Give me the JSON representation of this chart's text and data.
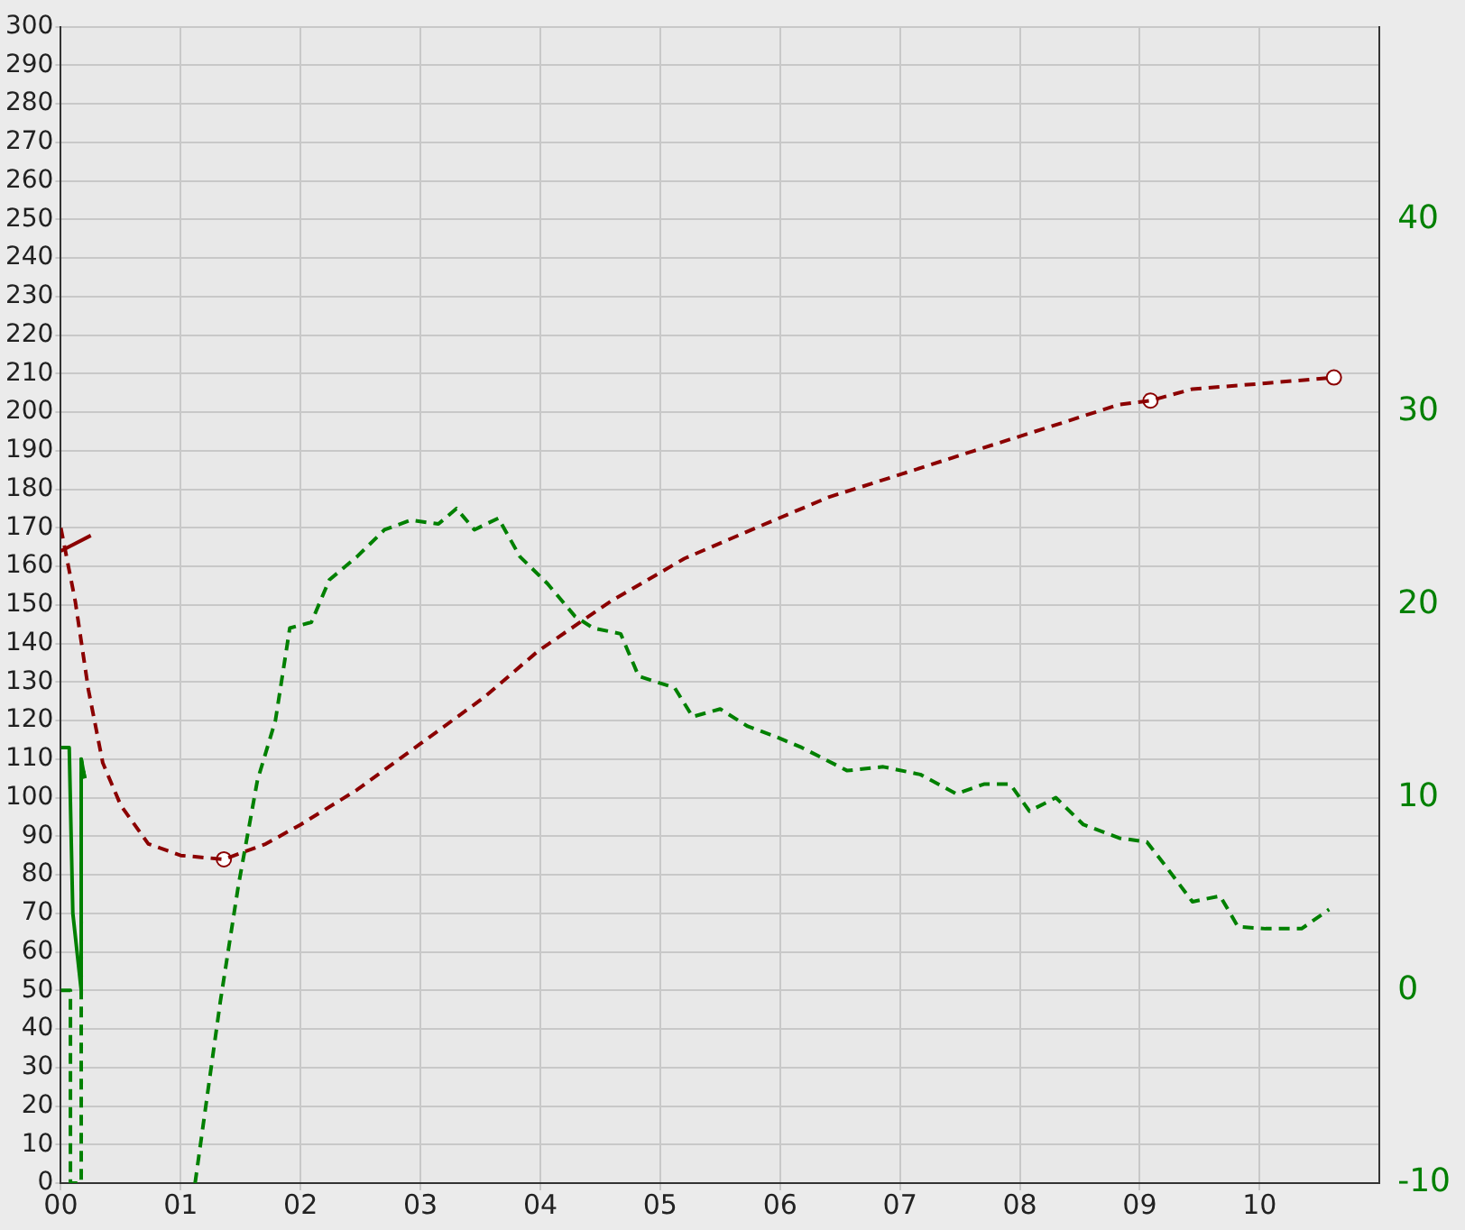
{
  "chart_data": {
    "type": "line",
    "xlim": [
      0,
      11
    ],
    "ylim": [
      0,
      300
    ],
    "y2lim": [
      -10,
      50
    ],
    "xticks": [
      {
        "value": 0,
        "label": "00"
      },
      {
        "value": 1,
        "label": "01"
      },
      {
        "value": 2,
        "label": "02"
      },
      {
        "value": 3,
        "label": "03"
      },
      {
        "value": 4,
        "label": "04"
      },
      {
        "value": 5,
        "label": "05"
      },
      {
        "value": 6,
        "label": "06"
      },
      {
        "value": 7,
        "label": "07"
      },
      {
        "value": 8,
        "label": "08"
      },
      {
        "value": 9,
        "label": "09"
      },
      {
        "value": 10,
        "label": "10"
      }
    ],
    "yticks": [
      0,
      10,
      20,
      30,
      40,
      50,
      60,
      70,
      80,
      90,
      100,
      110,
      120,
      130,
      140,
      150,
      160,
      170,
      180,
      190,
      200,
      210,
      220,
      230,
      240,
      250,
      260,
      270,
      280,
      290,
      300
    ],
    "y2ticks": [
      -10,
      0,
      10,
      20,
      30,
      40
    ],
    "grid": true,
    "legend": false,
    "series": [
      {
        "color": "#8b0000",
        "line_style": "dashed",
        "marker": "none",
        "x": [
          0,
          0.12,
          0.23,
          0.35,
          0.5,
          0.73,
          1.0,
          1.36,
          1.71,
          2,
          2.47,
          3,
          3.53,
          3.98,
          4.59,
          5.2,
          5.8,
          6.41,
          7.02,
          7.62,
          8.23,
          8.83,
          9.09,
          9.44,
          10.05,
          10.62
        ],
        "values": [
          170,
          151,
          128,
          109,
          98,
          88,
          85,
          84,
          88,
          93,
          102,
          114,
          126,
          138,
          151,
          162,
          170,
          178,
          184,
          190,
          196,
          202,
          203,
          206,
          207.5,
          209
        ]
      },
      {
        "color": "#8b0000",
        "line_style": "solid",
        "marker": "none",
        "x": [
          0,
          0.25
        ],
        "values": [
          164,
          168
        ]
      },
      {
        "type": "scatter",
        "color": "#8b0000",
        "marker": "circle",
        "x": [
          1.36,
          9.09,
          10.62
        ],
        "values": [
          84,
          203,
          209
        ]
      },
      {
        "axis": "y2",
        "color": "#008000",
        "line_style": "solid",
        "marker": "none",
        "x": [
          0,
          0.07,
          0.1,
          0.17,
          0.17,
          0.2
        ],
        "values": [
          12.6,
          12.6,
          4,
          0,
          12,
          11
        ]
      },
      {
        "axis": "y2",
        "color": "#008000",
        "line_style": "dashed",
        "marker": "none",
        "x": [
          0,
          0.08,
          0.08,
          0.17,
          0.17,
          0.2,
          0.6,
          1.12,
          1.33,
          1.48,
          1.64,
          1.79,
          1.91,
          2.09,
          2.24,
          2.47,
          2.7,
          2.92,
          3.15,
          3.3,
          3.45,
          3.65,
          3.83,
          4.06,
          4.29,
          4.44,
          4.67,
          4.82,
          5.12,
          5.27,
          5.5,
          5.73,
          5.95,
          6.18,
          6.56,
          6.86,
          7.17,
          7.47,
          7.7,
          7.92,
          8.08,
          8.3,
          8.53,
          8.83,
          9.06,
          9.21,
          9.44,
          9.67,
          9.82,
          10.05,
          10.35,
          10.58
        ],
        "values": [
          0,
          0,
          -10,
          -10,
          12,
          11,
          null,
          -10,
          -0.6,
          5.4,
          10.9,
          14,
          18.8,
          19.1,
          21.3,
          22.5,
          23.9,
          24.4,
          24.2,
          25,
          23.9,
          24.5,
          22.5,
          21.1,
          19.4,
          18.8,
          18.5,
          16.3,
          15.7,
          14.2,
          14.6,
          13.7,
          13.2,
          12.6,
          11.4,
          11.6,
          11.2,
          10.2,
          10.7,
          10.7,
          9.3,
          10,
          8.6,
          7.9,
          7.7,
          6.5,
          4.6,
          4.9,
          3.3,
          3.2,
          3.2,
          4.2
        ]
      }
    ]
  }
}
